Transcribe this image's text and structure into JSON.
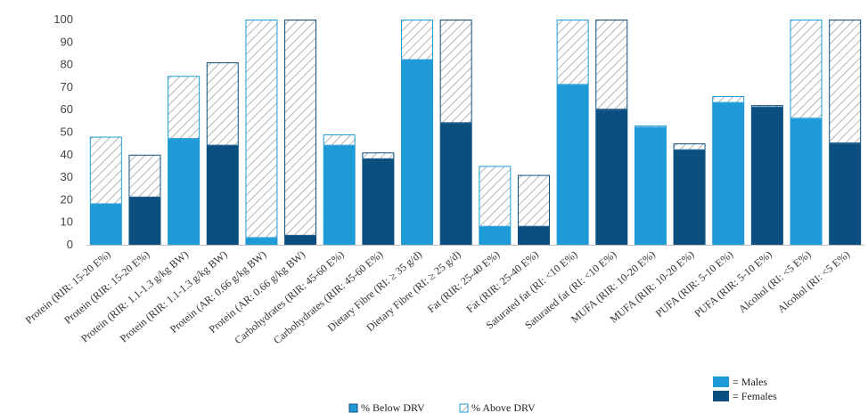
{
  "chart_data": {
    "type": "bar",
    "stacked": true,
    "categories": [
      "Protein (RIR: 15-20 E%)",
      "Protein (RIR: 15-20 E%)",
      "Protein (RIR: 1.1-1.3 g/kg BW)",
      "Protein (RIR: 1.1-1.3 g/kg BW)",
      "Protein (AR: 0.66 g/kg BW)",
      "Protein (AR: 0.66 g/kg BW)",
      "Carbohydrates (RIR: 45-60 E%)",
      "Carbohydrates (RIR: 45-60 E%)",
      "Dietary Fibre (RI: ≥ 35 g/d)",
      "Dietary Fibre (RI: ≥ 25 g/d)",
      "Fat (RIR: 25-40 E%)",
      "Fat (RIR: 25-40 E%)",
      "Saturated fat (RI: <10 E%)",
      "Saturated fat (RI: <10 E%)",
      "MUFA (RIR: 10-20 E%)",
      "MUFA (RIR: 10-20 E%)",
      "PUFA (RIR: 5-10 E%)",
      "PUFA (RIR: 5-10 E%)",
      "Alcohol (RI: <5 E%)",
      "Alcohol (RI: <5 E%)"
    ],
    "sex": [
      "Males",
      "Females",
      "Males",
      "Females",
      "Males",
      "Females",
      "Males",
      "Females",
      "Males",
      "Females",
      "Males",
      "Females",
      "Males",
      "Females",
      "Males",
      "Females",
      "Males",
      "Females",
      "Males",
      "Females"
    ],
    "series": [
      {
        "name": "% Below DRV",
        "values": [
          18,
          21,
          47,
          44,
          3,
          4,
          44,
          38,
          82,
          54,
          8,
          8,
          71,
          60,
          52,
          42,
          63,
          61,
          56,
          45
        ]
      },
      {
        "name": "% Above DRV",
        "values": [
          30,
          19,
          28,
          37,
          97,
          96,
          5,
          3,
          18,
          46,
          27,
          23,
          29,
          40,
          1,
          3,
          3,
          1,
          44,
          55
        ]
      }
    ],
    "ylim": [
      0,
      100
    ],
    "yticks": [
      0,
      10,
      20,
      30,
      40,
      50,
      60,
      70,
      80,
      90,
      100
    ],
    "title": "",
    "xlabel": "",
    "ylabel": "",
    "legend": {
      "placement": "bottom",
      "series_labels": [
        "% Below DRV",
        "% Above DRV"
      ],
      "sex_labels": [
        "= Males",
        "= Females"
      ]
    },
    "colors": {
      "males": "#1e9ad6",
      "females": "#0a4f80",
      "hatch_line": "#b5b5b5",
      "axis": "#bfbfbf"
    }
  }
}
